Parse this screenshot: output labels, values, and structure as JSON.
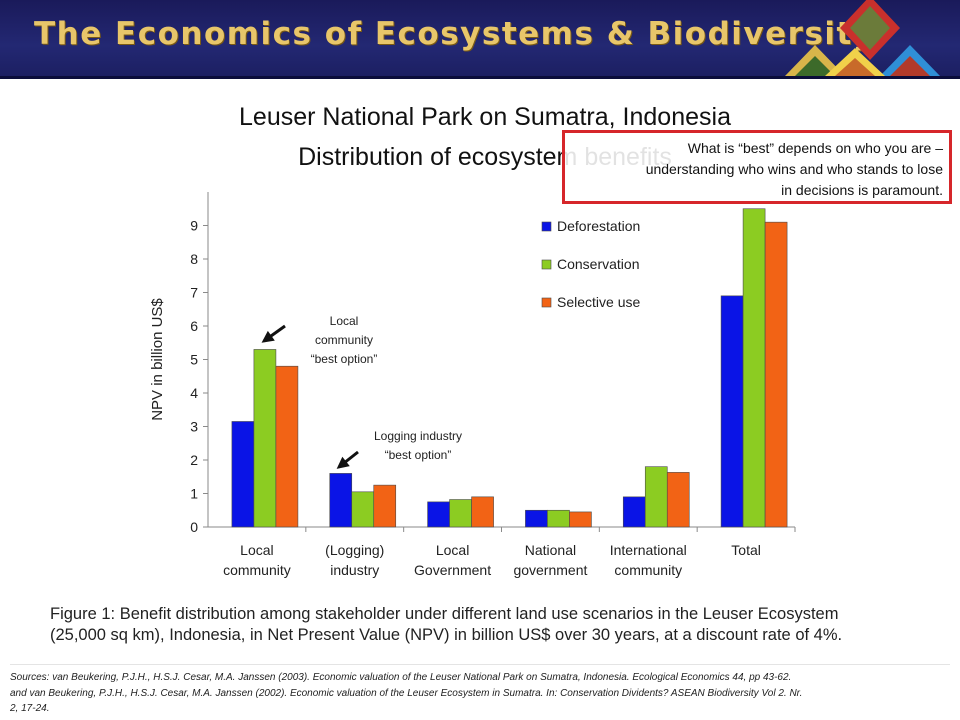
{
  "header": {
    "banner_title": "The Economics of Ecosystems & Biodiversity"
  },
  "slide": {
    "title_line1": "Leuser National Park on Sumatra, Indonesia",
    "title_line2": "Distribution of ecosystem benefits"
  },
  "callout": {
    "line1": "What is “best” depends on who you are –",
    "line2": "understanding who wins and who stands to lose",
    "line3": "in decisions is paramount."
  },
  "annotations": {
    "local": [
      "Local",
      "community",
      "“best option”"
    ],
    "logging": [
      "Logging industry",
      "“best option”"
    ]
  },
  "chart_data": {
    "type": "bar",
    "ylabel": "NPV in billion US$",
    "ylim": [
      0,
      10
    ],
    "yticks": [
      0,
      1,
      2,
      3,
      4,
      5,
      6,
      7,
      8,
      9
    ],
    "grid": false,
    "legend_position": "top-right",
    "categories": [
      [
        "Local",
        "community"
      ],
      [
        "(Logging)",
        "industry"
      ],
      [
        "Local",
        "Government"
      ],
      [
        "National",
        "government"
      ],
      [
        "International",
        "community"
      ],
      [
        "Total",
        ""
      ]
    ],
    "series": [
      {
        "name": "Deforestation",
        "color": "#0a14e6",
        "values": [
          3.15,
          1.6,
          0.75,
          0.5,
          0.9,
          6.9
        ]
      },
      {
        "name": "Conservation",
        "color": "#8ccc22",
        "values": [
          5.3,
          1.05,
          0.82,
          0.5,
          1.8,
          9.5
        ]
      },
      {
        "name": "Selective use",
        "color": "#f26315",
        "values": [
          4.8,
          1.25,
          0.9,
          0.45,
          1.63,
          9.1
        ]
      }
    ]
  },
  "caption": {
    "line1": "Figure 1: Benefit distribution among stakeholder under different land use scenarios in the Leuser Ecosystem",
    "line2": "(25,000 sq km), Indonesia, in Net Present Value (NPV) in billion US$ over 30 years, at a discount rate of 4%."
  },
  "sources": {
    "line1": "Sources: van Beukering, P.J.H., H.S.J. Cesar, M.A. Janssen (2003). Economic valuation of the Leuser National Park on Sumatra, Indonesia. Ecological Economics 44, pp 43-62.",
    "line2": "and van Beukering, P.J.H., H.S.J. Cesar, M.A. Janssen (2002). Economic valuation of the Leuser Ecosystem in Sumatra. In: Conservation Dividents? ASEAN Biodiversity Vol 2. Nr.",
    "line3": "2, 17-24."
  }
}
